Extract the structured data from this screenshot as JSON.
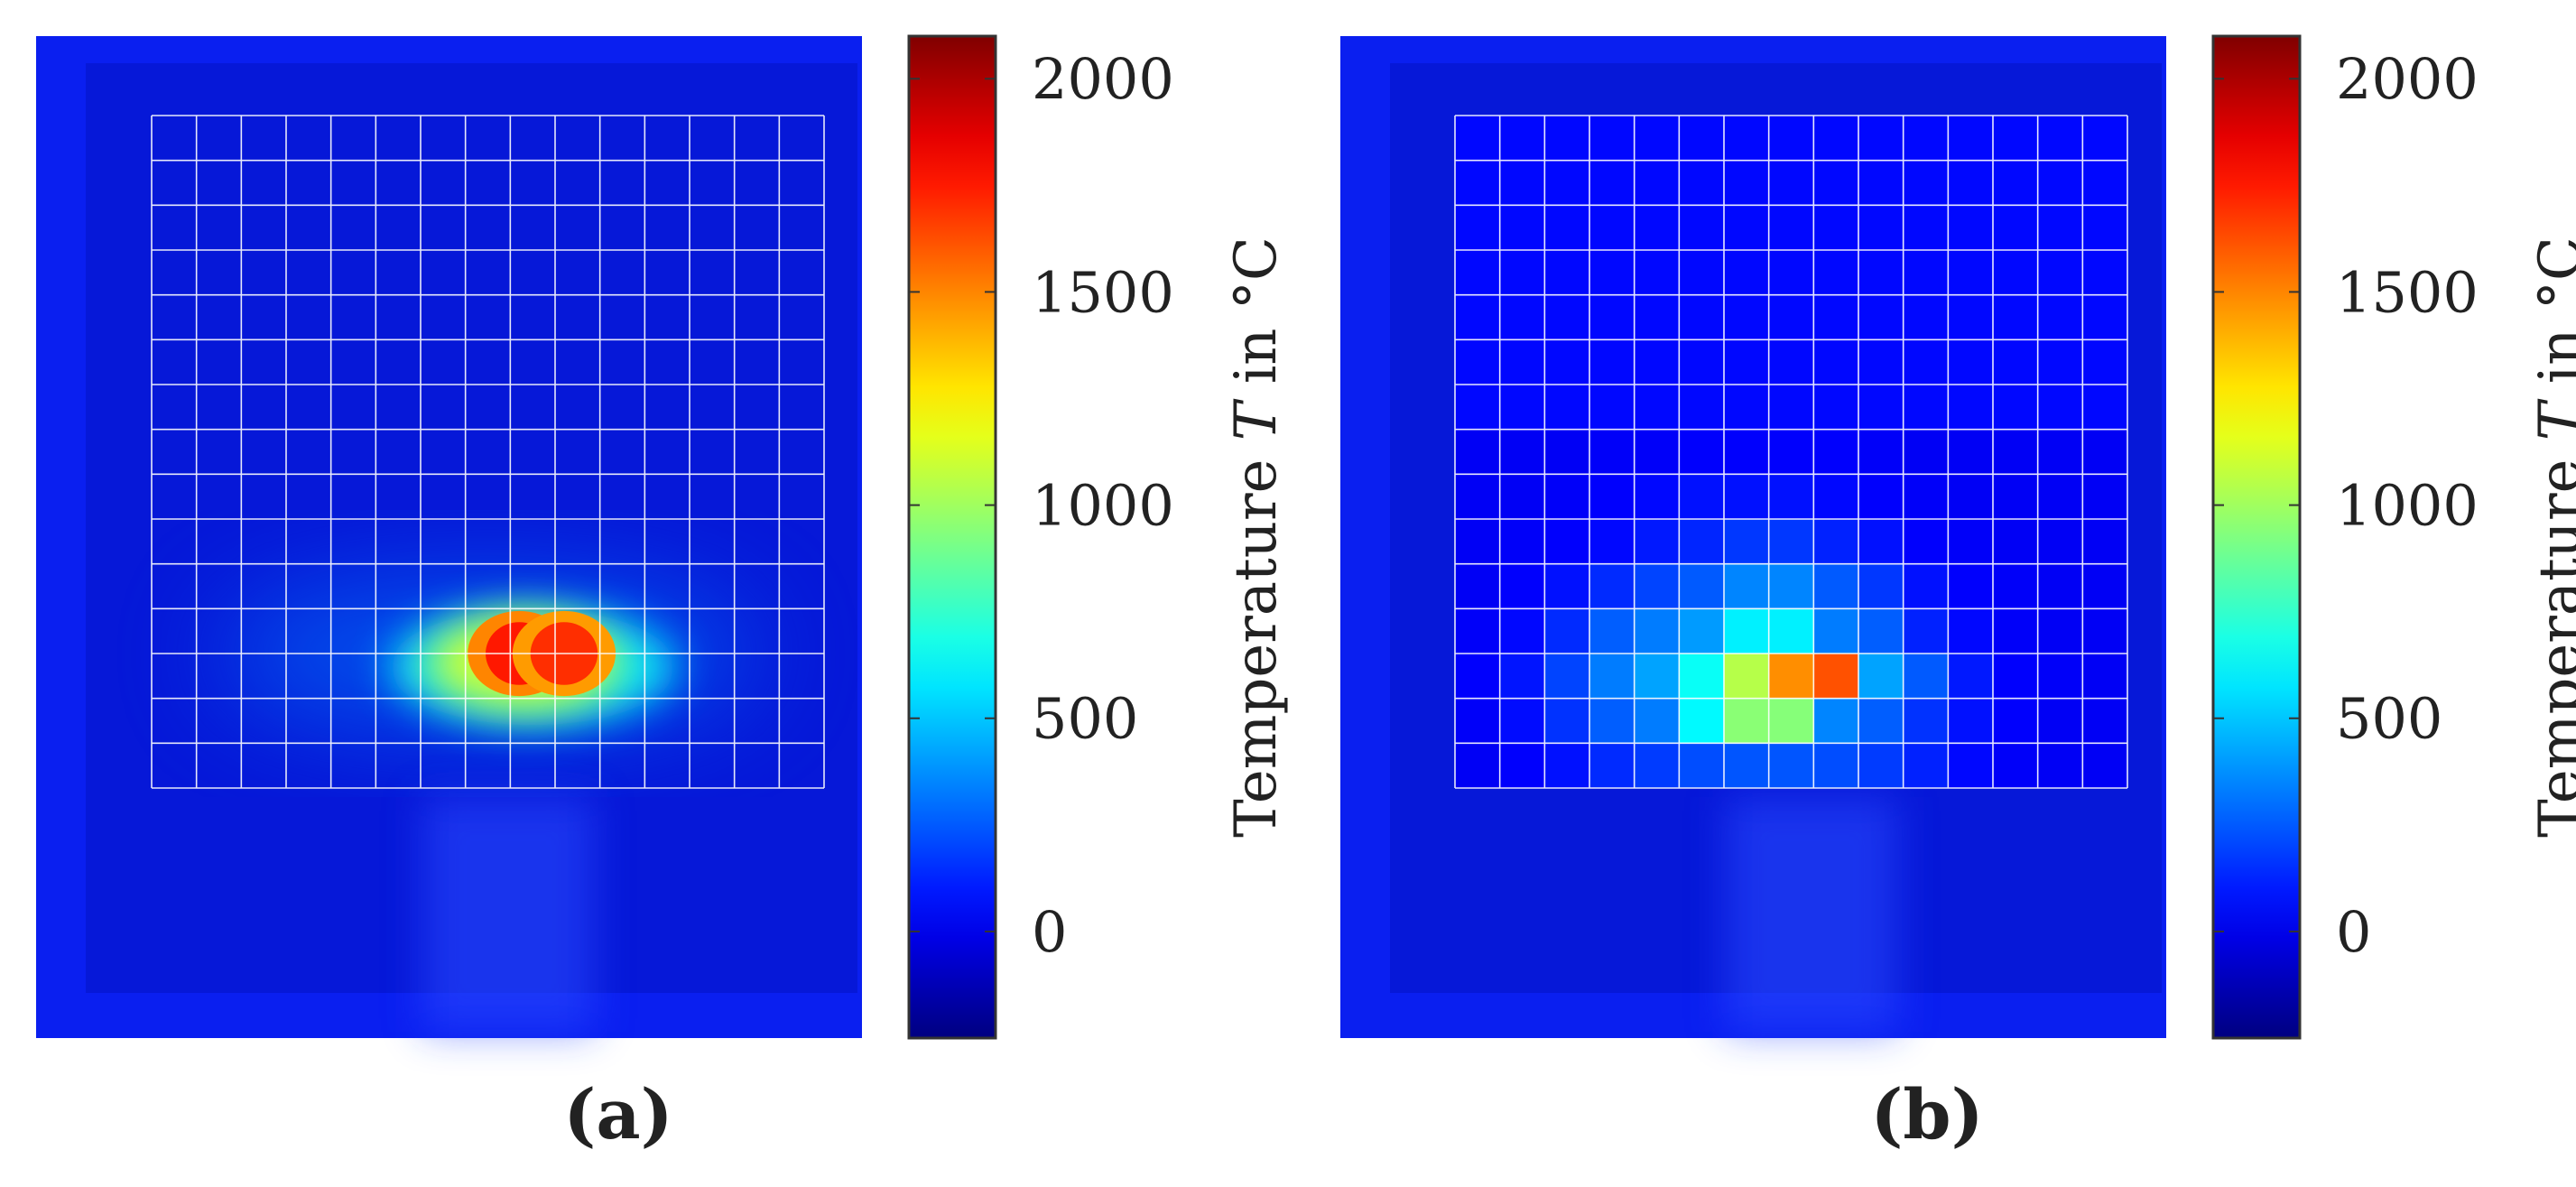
{
  "chart_data": [
    {
      "type": "heatmap",
      "panel_label": "(a)",
      "colormap": "jet",
      "colorbar": {
        "label_prefix": "Temperature",
        "label_variable": "T",
        "label_suffix": "in °C",
        "range": [
          -250,
          2100
        ],
        "ticks": [
          0,
          500,
          1000,
          1500,
          2000
        ],
        "tick_labels": [
          "0",
          "500",
          "1000",
          "1500",
          "2000"
        ]
      },
      "grid": {
        "rows": 15,
        "cols": 15,
        "visible": true
      },
      "background_temperature": 60,
      "hotspots": [
        {
          "row": 12,
          "col": 8,
          "peak": 1750
        },
        {
          "row": 12,
          "col": 9,
          "peak": 1700
        }
      ]
    },
    {
      "type": "heatmap",
      "panel_label": "(b)",
      "colormap": "jet",
      "colorbar": {
        "label_prefix": "Temperature",
        "label_variable": "T",
        "label_suffix": "in °C",
        "range": [
          -250,
          2100
        ],
        "ticks": [
          0,
          500,
          1000,
          1500,
          2000
        ],
        "tick_labels": [
          "0",
          "500",
          "1000",
          "1500",
          "2000"
        ]
      },
      "grid": {
        "rows": 15,
        "cols": 15,
        "visible": true
      },
      "background_temperature": 60,
      "cells": [
        [
          0,
          0,
          0,
          0,
          0,
          0,
          0,
          0,
          0,
          0,
          0,
          0,
          0,
          0,
          0
        ],
        [
          0,
          0,
          0,
          0,
          0,
          0,
          0,
          0,
          0,
          0,
          0,
          0,
          0,
          0,
          0
        ],
        [
          0,
          0,
          0,
          0,
          0,
          0,
          0,
          0,
          0,
          0,
          0,
          0,
          0,
          0,
          0
        ],
        [
          0,
          0,
          0,
          0,
          0,
          0,
          0,
          0,
          0,
          0,
          0,
          0,
          0,
          0,
          0
        ],
        [
          0,
          0,
          0,
          0,
          0,
          0,
          0,
          0,
          0,
          0,
          0,
          0,
          0,
          0,
          0
        ],
        [
          0,
          0,
          0,
          0,
          0,
          0,
          0,
          0,
          0,
          0,
          0,
          0,
          0,
          0,
          0
        ],
        [
          0,
          0,
          0,
          0,
          0,
          0,
          0,
          0,
          0,
          0,
          0,
          0,
          0,
          0,
          0
        ],
        [
          20,
          20,
          20,
          30,
          30,
          40,
          40,
          40,
          40,
          30,
          20,
          20,
          20,
          20,
          20
        ],
        [
          20,
          20,
          30,
          40,
          60,
          80,
          80,
          80,
          60,
          40,
          30,
          20,
          20,
          20,
          20
        ],
        [
          20,
          30,
          40,
          60,
          100,
          130,
          170,
          170,
          120,
          80,
          40,
          30,
          20,
          20,
          20
        ],
        [
          20,
          40,
          80,
          140,
          200,
          250,
          350,
          350,
          250,
          170,
          80,
          40,
          30,
          20,
          20
        ],
        [
          30,
          60,
          140,
          260,
          330,
          400,
          600,
          600,
          330,
          260,
          120,
          60,
          30,
          20,
          20
        ],
        [
          40,
          90,
          200,
          330,
          420,
          650,
          1050,
          1480,
          1620,
          420,
          250,
          100,
          40,
          30,
          20
        ],
        [
          30,
          70,
          160,
          260,
          330,
          620,
          950,
          940,
          350,
          260,
          160,
          80,
          40,
          20,
          20
        ],
        [
          20,
          40,
          80,
          140,
          180,
          220,
          240,
          240,
          220,
          180,
          120,
          60,
          30,
          20,
          20
        ]
      ]
    }
  ]
}
